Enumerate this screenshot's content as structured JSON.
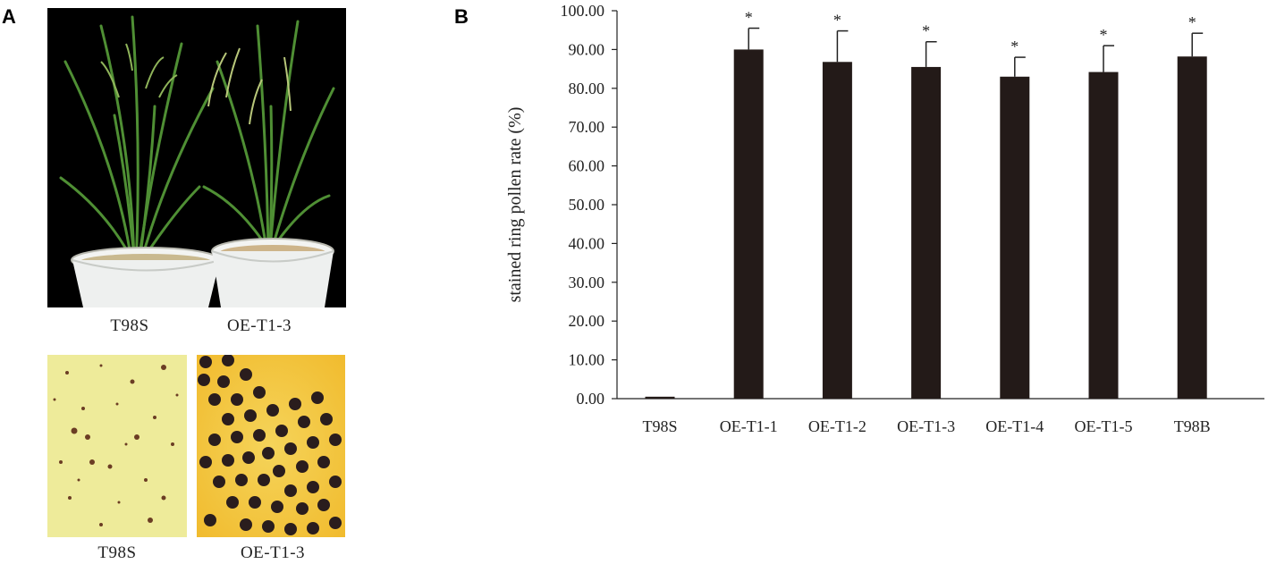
{
  "panel_a": {
    "label": "A",
    "plant_labels": [
      "T98S",
      "OE-T1-3"
    ],
    "pollen_labels": [
      "T98S",
      "OE-T1-3"
    ]
  },
  "panel_b": {
    "label": "B"
  },
  "colors": {
    "bar": "#231a18",
    "photo_background": "#000000",
    "leaf": "#4f8f34",
    "pot": "#eef0ef",
    "stain_light": "#eeeb9a",
    "stain_dark": "#f3c23a",
    "pollen": "#2a1d1d"
  },
  "icons": [
    "rice-plant-icon",
    "pot-icon",
    "pollen-grain-icon"
  ],
  "chart_data": {
    "type": "bar",
    "categories": [
      "T98S",
      "OE-T1-1",
      "OE-T1-2",
      "OE-T1-3",
      "OE-T1-4",
      "OE-T1-5",
      "T98B"
    ],
    "values": [
      0.5,
      90.0,
      86.8,
      85.5,
      83.0,
      84.2,
      88.2
    ],
    "errors": [
      0,
      5.5,
      8.0,
      6.5,
      5.0,
      6.8,
      6.0
    ],
    "significance": [
      "",
      "*",
      "*",
      "*",
      "*",
      "*",
      "*"
    ],
    "title": "",
    "xlabel": "",
    "ylabel": "stained ring pollen rate (%)",
    "ylim": [
      0,
      100
    ],
    "yticks": [
      "0.00",
      "10.00",
      "20.00",
      "30.00",
      "40.00",
      "50.00",
      "60.00",
      "70.00",
      "80.00",
      "90.00",
      "100.00"
    ],
    "grid": false,
    "legend": "none"
  }
}
